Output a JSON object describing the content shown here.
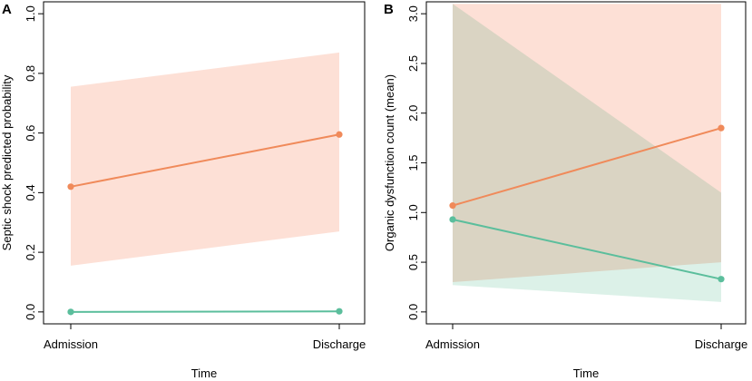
{
  "colors": {
    "orange_line": "#F08A5A",
    "orange_band": "#FDDDD2",
    "teal_line": "#5BBE9C",
    "teal_band": "#D8EFE6",
    "overlap_band": "#D9D8CB"
  },
  "chart_data": [
    {
      "type": "line",
      "panel": "A",
      "title": "",
      "xlabel": "Time",
      "ylabel": "Septic shock predicted probability",
      "categories": [
        "Admission",
        "Discharge"
      ],
      "ylim": [
        0.0,
        1.0
      ],
      "yticks": [
        0.0,
        0.2,
        0.4,
        0.6,
        0.8,
        1.0
      ],
      "ytick_labels": [
        "0.0",
        "0.2",
        "0.4",
        "0.6",
        "0.8",
        "1.0"
      ],
      "series": [
        {
          "name": "orange",
          "color": "#F08A5A",
          "band_color": "#FDDDD2",
          "values": [
            0.42,
            0.595
          ],
          "lower": [
            0.155,
            0.27
          ],
          "upper": [
            0.755,
            0.87
          ]
        },
        {
          "name": "teal",
          "color": "#5BBE9C",
          "band_color": "#D8EFE6",
          "values": [
            0.0,
            0.002
          ],
          "lower": [
            0.0,
            0.0
          ],
          "upper": [
            0.0,
            0.003
          ]
        }
      ]
    },
    {
      "type": "line",
      "panel": "B",
      "title": "",
      "xlabel": "Time",
      "ylabel": "Organic dysfunction count (mean)",
      "categories": [
        "Admission",
        "Discharge"
      ],
      "ylim": [
        0.0,
        3.0
      ],
      "yticks": [
        0.0,
        0.5,
        1.0,
        1.5,
        2.0,
        2.5,
        3.0
      ],
      "ytick_labels": [
        "0.0",
        "0.5",
        "1.0",
        "1.5",
        "2.0",
        "2.5",
        "3.0"
      ],
      "series": [
        {
          "name": "orange",
          "color": "#F08A5A",
          "band_color": "#FDDDD2",
          "values": [
            1.07,
            1.85
          ],
          "lower": [
            0.3,
            0.5
          ],
          "upper": [
            3.1,
            3.1
          ]
        },
        {
          "name": "teal",
          "color": "#5BBE9C",
          "band_color": "#D8EFE6",
          "values": [
            0.93,
            0.33
          ],
          "lower": [
            0.27,
            0.1
          ],
          "upper": [
            3.1,
            1.2
          ]
        }
      ]
    }
  ]
}
